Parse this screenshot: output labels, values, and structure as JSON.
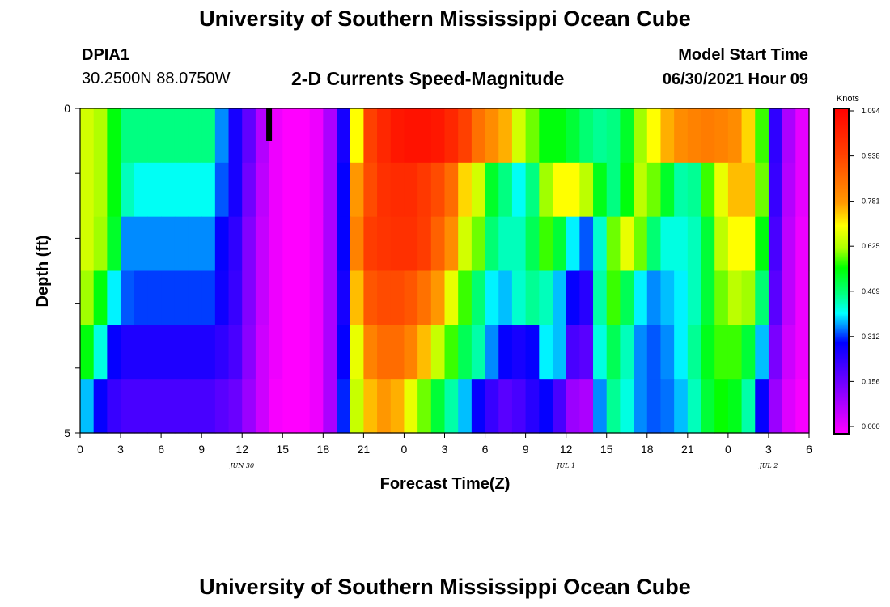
{
  "header": {
    "title": "University of Southern Mississippi Ocean Cube",
    "station": "DPIA1",
    "coords": "30.2500N  88.0750W",
    "subtitle": "2-D Currents Speed-Magnitude",
    "model_start_label": "Model Start Time",
    "model_start_value": "06/30/2021 Hour 09"
  },
  "footer": {
    "title": "University of Southern Mississippi Ocean Cube"
  },
  "chart_data": {
    "type": "heatmap",
    "title": "2-D Currents Speed-Magnitude",
    "xlabel": "Forecast Time(Z)",
    "ylabel": "Depth (ft)",
    "x_tick_labels": [
      "0",
      "3",
      "6",
      "9",
      "12",
      "15",
      "18",
      "21",
      "0",
      "3",
      "6",
      "9",
      "12",
      "15",
      "18",
      "21",
      "0",
      "3",
      "6"
    ],
    "x_range_hours": [
      0,
      54
    ],
    "y_tick_labels": [
      "0",
      "5"
    ],
    "y_range": [
      0,
      5
    ],
    "date_labels": [
      {
        "label": "JUN 30",
        "hour": 12
      },
      {
        "label": "JUL 1",
        "hour": 36
      },
      {
        "label": "JUL 2",
        "hour": 51
      }
    ],
    "model_start_marker_hour": 14,
    "colorbar": {
      "units": "Knots",
      "min": 0.0,
      "max": 1.094,
      "tick_labels": [
        "1.094",
        "0.938",
        "0.781",
        "0.625",
        "0.469",
        "0.312",
        "0.156",
        "0.000"
      ]
    },
    "depth_layers": 6,
    "time_steps": 54,
    "speed_knots": [
      [
        0.66,
        0.63,
        0.55,
        0.47,
        0.47,
        0.47,
        0.47,
        0.47,
        0.47,
        0.47,
        0.36,
        0.28,
        0.19,
        0.09,
        0.02,
        0.0,
        0.0,
        0.02,
        0.1,
        0.28,
        0.7,
        0.94,
        1.0,
        1.04,
        1.05,
        1.05,
        1.04,
        1.0,
        0.94,
        0.85,
        0.8,
        0.76,
        0.66,
        0.6,
        0.55,
        0.55,
        0.52,
        0.48,
        0.46,
        0.47,
        0.53,
        0.62,
        0.7,
        0.76,
        0.8,
        0.82,
        0.83,
        0.82,
        0.8,
        0.73,
        0.58,
        0.25,
        0.1,
        0.03
      ],
      [
        0.66,
        0.63,
        0.55,
        0.44,
        0.41,
        0.41,
        0.41,
        0.41,
        0.41,
        0.41,
        0.34,
        0.28,
        0.17,
        0.08,
        0.02,
        0.0,
        0.0,
        0.02,
        0.1,
        0.3,
        0.78,
        0.92,
        0.98,
        0.99,
        0.99,
        0.96,
        0.92,
        0.86,
        0.73,
        0.66,
        0.53,
        0.47,
        0.41,
        0.47,
        0.62,
        0.7,
        0.7,
        0.64,
        0.54,
        0.47,
        0.55,
        0.64,
        0.6,
        0.53,
        0.45,
        0.46,
        0.58,
        0.68,
        0.75,
        0.75,
        0.6,
        0.24,
        0.09,
        0.03
      ],
      [
        0.66,
        0.62,
        0.53,
        0.36,
        0.36,
        0.36,
        0.36,
        0.36,
        0.36,
        0.36,
        0.3,
        0.25,
        0.15,
        0.07,
        0.02,
        0.0,
        0.0,
        0.02,
        0.1,
        0.3,
        0.82,
        0.95,
        0.97,
        0.98,
        0.98,
        0.95,
        0.88,
        0.8,
        0.66,
        0.6,
        0.48,
        0.44,
        0.44,
        0.5,
        0.58,
        0.52,
        0.4,
        0.34,
        0.43,
        0.6,
        0.68,
        0.6,
        0.48,
        0.42,
        0.42,
        0.44,
        0.52,
        0.64,
        0.7,
        0.7,
        0.55,
        0.22,
        0.08,
        0.02
      ],
      [
        0.62,
        0.55,
        0.4,
        0.34,
        0.33,
        0.33,
        0.33,
        0.33,
        0.33,
        0.33,
        0.29,
        0.24,
        0.15,
        0.07,
        0.02,
        0.0,
        0.0,
        0.02,
        0.1,
        0.28,
        0.75,
        0.9,
        0.92,
        0.92,
        0.9,
        0.85,
        0.78,
        0.68,
        0.58,
        0.48,
        0.4,
        0.38,
        0.43,
        0.46,
        0.44,
        0.38,
        0.3,
        0.26,
        0.45,
        0.58,
        0.5,
        0.4,
        0.36,
        0.38,
        0.4,
        0.44,
        0.52,
        0.6,
        0.64,
        0.62,
        0.48,
        0.2,
        0.08,
        0.02
      ],
      [
        0.55,
        0.42,
        0.3,
        0.27,
        0.27,
        0.27,
        0.27,
        0.27,
        0.27,
        0.27,
        0.25,
        0.22,
        0.14,
        0.06,
        0.02,
        0.0,
        0.0,
        0.02,
        0.1,
        0.3,
        0.68,
        0.82,
        0.86,
        0.86,
        0.82,
        0.75,
        0.65,
        0.58,
        0.5,
        0.45,
        0.36,
        0.3,
        0.28,
        0.3,
        0.4,
        0.38,
        0.22,
        0.2,
        0.42,
        0.5,
        0.44,
        0.36,
        0.34,
        0.36,
        0.4,
        0.46,
        0.54,
        0.58,
        0.58,
        0.52,
        0.38,
        0.16,
        0.06,
        0.02
      ],
      [
        0.38,
        0.3,
        0.24,
        0.22,
        0.22,
        0.22,
        0.22,
        0.22,
        0.22,
        0.22,
        0.2,
        0.18,
        0.12,
        0.06,
        0.01,
        0.0,
        0.0,
        0.02,
        0.1,
        0.32,
        0.65,
        0.75,
        0.78,
        0.76,
        0.68,
        0.6,
        0.52,
        0.45,
        0.38,
        0.3,
        0.24,
        0.2,
        0.22,
        0.26,
        0.3,
        0.22,
        0.12,
        0.1,
        0.36,
        0.46,
        0.42,
        0.36,
        0.34,
        0.35,
        0.38,
        0.44,
        0.52,
        0.56,
        0.54,
        0.45,
        0.3,
        0.12,
        0.04,
        0.01
      ]
    ]
  }
}
